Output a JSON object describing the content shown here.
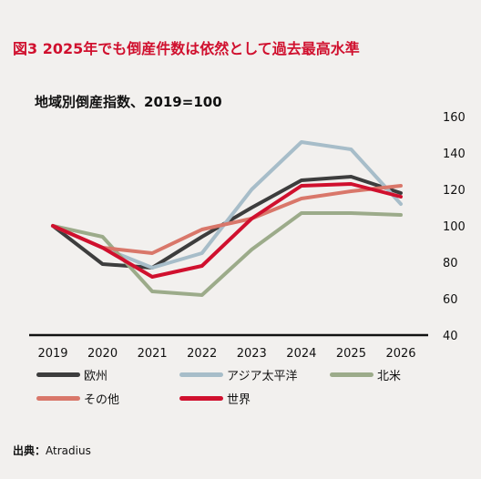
{
  "title": "図3 2025年でも倒産件数は依然として過去最高水準",
  "source": {
    "label": "出典",
    "separator": "：",
    "value": "Atradius"
  },
  "chart_data": {
    "type": "line",
    "title": "地域別倒産指数、2019=100",
    "xlabel": "",
    "ylabel": "",
    "x": [
      "2019",
      "2020",
      "2021",
      "2022",
      "2023",
      "2024",
      "2025",
      "2026"
    ],
    "ylim": [
      40,
      160
    ],
    "yticks": [
      40,
      60,
      80,
      100,
      120,
      140,
      160
    ],
    "y_axis_side": "right",
    "grid": false,
    "legend_position": "bottom",
    "series": [
      {
        "name": "欧州",
        "color": "#3d3d3d",
        "values": [
          100,
          79,
          77,
          94,
          110,
          125,
          127,
          118
        ]
      },
      {
        "name": "アジア太平洋",
        "color": "#a7bdc9",
        "values": [
          100,
          88,
          77,
          85,
          120,
          146,
          142,
          112
        ]
      },
      {
        "name": "北米",
        "color": "#9cab8a",
        "values": [
          100,
          94,
          64,
          62,
          87,
          107,
          107,
          106
        ]
      },
      {
        "name": "その他",
        "color": "#d9776a",
        "values": [
          100,
          88,
          85,
          98,
          104,
          115,
          119,
          122
        ]
      },
      {
        "name": "世界",
        "color": "#d0102e",
        "values": [
          100,
          88,
          72,
          78,
          104,
          122,
          123,
          116
        ]
      }
    ]
  }
}
